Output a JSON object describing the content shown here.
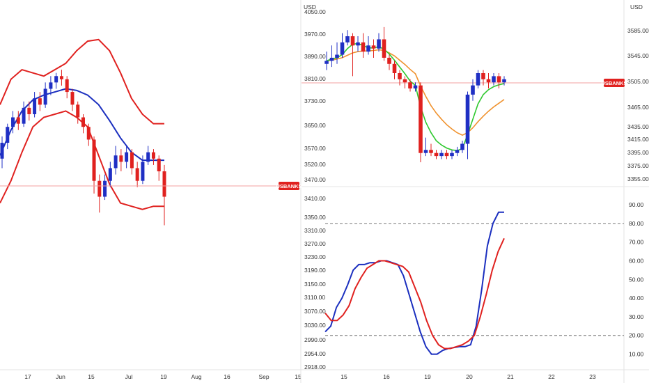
{
  "chart_data": [
    {
      "type": "candlestick",
      "symbol": "USBANKS",
      "currency": "USD",
      "overlays": [
        "bollinger-upper",
        "bollinger-mid",
        "bollinger-lower"
      ],
      "x_ticks": [
        "17",
        "Jun",
        "15",
        "Jul",
        "19",
        "Aug",
        "16",
        "Sep",
        "15"
      ],
      "y_ticks": [
        4050,
        3970,
        3890,
        3810,
        3730,
        3650,
        3570,
        3520,
        3470,
        3410,
        3350,
        3310,
        3270,
        3230,
        3190,
        3150,
        3110,
        3070,
        3030,
        2990,
        2954,
        2918
      ],
      "y_tick_labels": [
        "4050.00",
        "3970.00",
        "3890.00",
        "3810.00",
        "3730.00",
        "3650.00",
        "3570.00",
        "3520.00",
        "3470.00",
        "3410.00",
        "3350.00",
        "3310.00",
        "3270.00",
        "3230.00",
        "3190.00",
        "3150.00",
        "3110.00",
        "3070.00",
        "3030.00",
        "2990.00",
        "2954.00",
        "2918.00"
      ],
      "last_price_label": "USBANKS",
      "colors": {
        "up": "#1f2fc4",
        "down": "#e0211f",
        "upper": "#e0211f",
        "mid": "#1b2fbf",
        "lower": "#e0211f"
      },
      "price_range": [
        3300,
        3980
      ],
      "upper_band": [
        3760,
        3840,
        3870,
        3860,
        3850,
        3870,
        3890,
        3930,
        3960,
        3965,
        3930,
        3860,
        3780,
        3730,
        3700,
        3700
      ],
      "mid_band": [
        3600,
        3680,
        3740,
        3775,
        3790,
        3800,
        3810,
        3805,
        3790,
        3760,
        3710,
        3655,
        3610,
        3585,
        3585,
        3585
      ],
      "lower_band": [
        3450,
        3520,
        3610,
        3690,
        3720,
        3730,
        3740,
        3720,
        3690,
        3600,
        3510,
        3450,
        3440,
        3430,
        3440,
        3440
      ],
      "candles": [
        [
          3590,
          3640,
          3560,
          3660
        ],
        [
          3640,
          3690,
          3620,
          3700
        ],
        [
          3690,
          3720,
          3670,
          3740
        ],
        [
          3720,
          3700,
          3680,
          3740
        ],
        [
          3700,
          3750,
          3690,
          3770
        ],
        [
          3750,
          3730,
          3710,
          3770
        ],
        [
          3730,
          3780,
          3720,
          3800
        ],
        [
          3780,
          3760,
          3740,
          3800
        ],
        [
          3760,
          3810,
          3750,
          3830
        ],
        [
          3810,
          3830,
          3790,
          3850
        ],
        [
          3830,
          3850,
          3810,
          3860
        ],
        [
          3850,
          3840,
          3820,
          3870
        ],
        [
          3840,
          3800,
          3780,
          3850
        ],
        [
          3800,
          3760,
          3740,
          3810
        ],
        [
          3760,
          3720,
          3700,
          3770
        ],
        [
          3720,
          3690,
          3670,
          3730
        ],
        [
          3690,
          3650,
          3630,
          3700
        ],
        [
          3650,
          3520,
          3480,
          3660
        ],
        [
          3520,
          3470,
          3420,
          3540
        ],
        [
          3470,
          3520,
          3460,
          3540
        ],
        [
          3520,
          3560,
          3500,
          3580
        ],
        [
          3560,
          3600,
          3540,
          3630
        ],
        [
          3600,
          3580,
          3550,
          3620
        ],
        [
          3580,
          3610,
          3560,
          3630
        ],
        [
          3610,
          3560,
          3540,
          3620
        ],
        [
          3560,
          3520,
          3500,
          3580
        ],
        [
          3520,
          3580,
          3510,
          3600
        ],
        [
          3580,
          3610,
          3570,
          3630
        ],
        [
          3610,
          3590,
          3570,
          3620
        ],
        [
          3590,
          3550,
          3520,
          3600
        ],
        [
          3550,
          3470,
          3380,
          3570
        ]
      ]
    },
    {
      "type": "candlestick",
      "currency": "USD",
      "overlays": [
        "ma-fast",
        "ma-slow"
      ],
      "x_ticks": [
        "15",
        "16",
        "19",
        "20",
        "21",
        "22",
        "23"
      ],
      "y_ticks": [
        3585,
        3545,
        3505,
        3465,
        3435,
        3415,
        3395,
        3375,
        3355
      ],
      "y_tick_labels": [
        "3585.00",
        "3545.00",
        "3505.00",
        "3465.00",
        "3435.00",
        "3415.00",
        "3395.00",
        "3375.00",
        "3355.00"
      ],
      "last_price_label": "USBANKS",
      "colors": {
        "up": "#1f2fc4",
        "down": "#e0211f",
        "fast": "#2ec82e",
        "slow": "#f0922e"
      },
      "price_range": [
        3355,
        3610
      ],
      "candles": [
        [
          3540,
          3545,
          3530,
          3560
        ],
        [
          3545,
          3550,
          3535,
          3570
        ],
        [
          3550,
          3555,
          3540,
          3575
        ],
        [
          3555,
          3575,
          3550,
          3590
        ],
        [
          3575,
          3585,
          3570,
          3595
        ],
        [
          3585,
          3570,
          3520,
          3590
        ],
        [
          3570,
          3575,
          3560,
          3585
        ],
        [
          3575,
          3560,
          3550,
          3590
        ],
        [
          3560,
          3570,
          3555,
          3585
        ],
        [
          3570,
          3565,
          3550,
          3580
        ],
        [
          3565,
          3580,
          3560,
          3590
        ],
        [
          3580,
          3550,
          3545,
          3600
        ],
        [
          3550,
          3540,
          3530,
          3555
        ],
        [
          3540,
          3525,
          3515,
          3545
        ],
        [
          3525,
          3515,
          3505,
          3530
        ],
        [
          3515,
          3510,
          3500,
          3520
        ],
        [
          3510,
          3500,
          3495,
          3515
        ],
        [
          3500,
          3505,
          3495,
          3510
        ],
        [
          3505,
          3395,
          3380,
          3510
        ],
        [
          3395,
          3400,
          3390,
          3420
        ],
        [
          3400,
          3395,
          3390,
          3410
        ],
        [
          3395,
          3390,
          3385,
          3400
        ],
        [
          3390,
          3395,
          3385,
          3400
        ],
        [
          3395,
          3390,
          3385,
          3400
        ],
        [
          3390,
          3395,
          3385,
          3400
        ],
        [
          3395,
          3400,
          3390,
          3405
        ],
        [
          3400,
          3410,
          3395,
          3415
        ],
        [
          3410,
          3490,
          3385,
          3495
        ],
        [
          3490,
          3505,
          3480,
          3515
        ],
        [
          3505,
          3525,
          3500,
          3530
        ],
        [
          3525,
          3515,
          3505,
          3530
        ],
        [
          3515,
          3510,
          3500,
          3525
        ],
        [
          3510,
          3520,
          3505,
          3525
        ],
        [
          3520,
          3510,
          3500,
          3525
        ],
        [
          3510,
          3515,
          3505,
          3520
        ]
      ],
      "ma_fast": [
        3545,
        3548,
        3550,
        3555,
        3565,
        3572,
        3573,
        3570,
        3566,
        3566,
        3568,
        3564,
        3556,
        3546,
        3535,
        3524,
        3512,
        3505,
        3470,
        3445,
        3428,
        3415,
        3408,
        3403,
        3400,
        3399,
        3402,
        3425,
        3450,
        3475,
        3490,
        3498,
        3503,
        3506,
        3508
      ],
      "ma_slow": [
        3545,
        3546,
        3548,
        3550,
        3554,
        3558,
        3560,
        3561,
        3561,
        3562,
        3563,
        3562,
        3558,
        3553,
        3546,
        3539,
        3531,
        3524,
        3504,
        3487,
        3472,
        3460,
        3450,
        3441,
        3434,
        3428,
        3424,
        3428,
        3436,
        3446,
        3455,
        3463,
        3470,
        3476,
        3482
      ]
    },
    {
      "type": "line",
      "indicator": "stochastic",
      "y_ticks": [
        90,
        80,
        70,
        60,
        50,
        40,
        30,
        20,
        10
      ],
      "y_tick_labels": [
        "90.00",
        "80.00",
        "70.00",
        "60.00",
        "50.00",
        "40.00",
        "30.00",
        "20.00",
        "10.00"
      ],
      "levels": [
        80,
        20
      ],
      "ylim": [
        2,
        96
      ],
      "series": [
        {
          "color": "#1b2fbf",
          "values": [
            22,
            25,
            35,
            40,
            47,
            55,
            58,
            58,
            59,
            59,
            60,
            60,
            59,
            58,
            52,
            42,
            32,
            22,
            14,
            10,
            10,
            12,
            13,
            13.5,
            14,
            14,
            15,
            25,
            45,
            68,
            80,
            86,
            86
          ]
        },
        {
          "color": "#e0211f",
          "values": [
            32,
            28,
            28,
            31,
            36,
            45,
            51,
            56,
            58,
            60,
            60,
            59,
            58,
            57,
            54,
            46,
            38,
            28,
            20,
            15,
            13,
            13,
            14,
            15,
            17,
            20,
            30,
            42,
            55,
            65,
            72
          ]
        }
      ]
    }
  ]
}
